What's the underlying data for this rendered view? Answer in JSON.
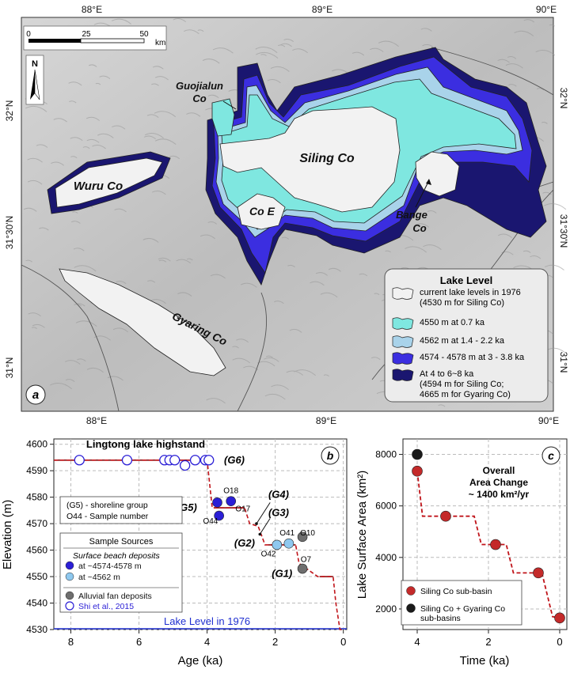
{
  "map": {
    "panel_label": "a",
    "lon_ticks": [
      "88°E",
      "89°E",
      "90°E"
    ],
    "lat_ticks_left": [
      "32°N",
      "31°30'N",
      "31°N"
    ],
    "lat_ticks_right": [
      "32°N",
      "31°30'N",
      "31°N"
    ],
    "scalebar": {
      "ticks": [
        "0",
        "25",
        "50"
      ],
      "unit": "km"
    },
    "north_label": "N",
    "lake_names": {
      "guojialun": [
        "Guojialun",
        "Co"
      ],
      "siling": "Siling Co",
      "wuru": "Wuru Co",
      "coe": "Co E",
      "bange": [
        "Bange",
        "Co"
      ],
      "gyaring": "Gyaring Co"
    },
    "legend": {
      "title": "Lake Level",
      "items": [
        {
          "text": [
            "current lake levels in 1976",
            "(4530 m for Siling Co)"
          ],
          "color": "#f2f2f2"
        },
        {
          "text": [
            "4550 m at 0.7 ka"
          ],
          "color": "#7fe7e0"
        },
        {
          "text": [
            "4562 m at 1.4 - 2.2 ka"
          ],
          "color": "#a9d3ea"
        },
        {
          "text": [
            "4574 - 4578 m at 3 - 3.8 ka"
          ],
          "color": "#3b2ee0"
        },
        {
          "text": [
            "At 4 to 6~8 ka",
            "(4594 m for Siling Co;",
            "4665 m for Gyaring Co)"
          ],
          "color": "#1a1670"
        }
      ]
    }
  },
  "chart_data": [
    {
      "type": "scatter",
      "panel_label": "b",
      "title": "Lingtong lake highstand",
      "xlabel": "Age (ka)",
      "ylabel": "Elevation (m)",
      "xlim": [
        8.5,
        -0.1
      ],
      "ylim": [
        4530,
        4602
      ],
      "x_ticks": [
        8,
        6,
        4,
        2,
        0
      ],
      "y_ticks": [
        4530,
        4540,
        4550,
        4560,
        4570,
        4580,
        4590,
        4600
      ],
      "grid": true,
      "reference_line": {
        "label": "Lake Level in 1976",
        "y": 4530,
        "color": "#1f2fd0"
      },
      "step_curve": {
        "color": "#c0141a",
        "solid_segments": [
          [
            [
              8.5,
              4594
            ],
            [
              4.0,
              4594
            ]
          ],
          [
            [
              3.8,
              4576
            ],
            [
              2.9,
              4576
            ]
          ],
          [
            [
              2.2,
              4562
            ],
            [
              1.4,
              4562
            ]
          ],
          [
            [
              0.7,
              4550
            ],
            [
              0.3,
              4550
            ]
          ]
        ],
        "dashed": [
          [
            8.5,
            4594
          ],
          [
            4.0,
            4594
          ],
          [
            3.85,
            4576
          ],
          [
            2.9,
            4576
          ],
          [
            2.75,
            4570
          ],
          [
            2.5,
            4569
          ],
          [
            2.3,
            4562
          ],
          [
            1.4,
            4562
          ],
          [
            1.3,
            4555
          ],
          [
            0.75,
            4550
          ],
          [
            0.3,
            4550
          ],
          [
            0.22,
            4540
          ],
          [
            0.1,
            4530
          ],
          [
            0.0,
            4530
          ]
        ]
      },
      "series": [
        {
          "name": "at ~4574-4578 m",
          "marker": "filled",
          "color": "#2b1fd6",
          "points": [
            [
              3.7,
              4578
            ],
            [
              3.3,
              4578.5
            ],
            [
              3.65,
              4573
            ]
          ]
        },
        {
          "name": "at ~4562 m",
          "marker": "filled",
          "color": "#8ec8ef",
          "points": [
            [
              1.95,
              4562
            ],
            [
              1.6,
              4562.5
            ]
          ]
        },
        {
          "name": "Alluvial fan deposits",
          "marker": "filled",
          "color": "#6e6e6e",
          "points": [
            [
              1.2,
              4565
            ],
            [
              1.2,
              4553
            ]
          ]
        },
        {
          "name": "Shi et al., 2015",
          "marker": "open",
          "color": "#2b1fd6",
          "points": [
            [
              7.75,
              4594
            ],
            [
              6.35,
              4594
            ],
            [
              5.25,
              4594
            ],
            [
              5.1,
              4594
            ],
            [
              4.95,
              4594
            ],
            [
              4.65,
              4592
            ],
            [
              4.35,
              4594
            ],
            [
              4.05,
              4594
            ],
            [
              3.95,
              4594
            ]
          ]
        }
      ],
      "annotations": [
        {
          "text": "(G6)",
          "x": 3.2,
          "y": 4594
        },
        {
          "text": "(G5)",
          "x": 4.6,
          "y": 4576
        },
        {
          "text": "(G4)",
          "x": 1.9,
          "y": 4581
        },
        {
          "text": "(G3)",
          "x": 1.9,
          "y": 4574
        },
        {
          "text": "(G2)",
          "x": 2.9,
          "y": 4562.5
        },
        {
          "text": "(G1)",
          "x": 1.8,
          "y": 4551
        }
      ],
      "sample_labels": [
        {
          "text": "O18",
          "x": 3.3,
          "y": 4582.5
        },
        {
          "text": "O17",
          "x": 2.95,
          "y": 4575.5
        },
        {
          "text": "O44",
          "x": 3.9,
          "y": 4571
        },
        {
          "text": "O41",
          "x": 1.65,
          "y": 4566.5
        },
        {
          "text": "O10",
          "x": 1.05,
          "y": 4566.5
        },
        {
          "text": "O42",
          "x": 2.2,
          "y": 4558.5
        },
        {
          "text": "O7",
          "x": 1.1,
          "y": 4556.5
        }
      ],
      "legend_box_top": {
        "line1": "(G5) - shoreline group",
        "line2": "O44 - Sample number"
      },
      "legend": {
        "title": "Sample Sources",
        "subtitle": "Surface beach deposits",
        "items": [
          "at ~4574-4578 m",
          "at ~4562 m",
          "Alluvial fan deposits",
          "Shi et al., 2015"
        ]
      }
    },
    {
      "type": "line",
      "panel_label": "c",
      "xlabel": "Time (ka)",
      "ylabel": "Lake Surface Area (km²)",
      "xlim": [
        4.4,
        -0.2
      ],
      "ylim": [
        1200,
        8600
      ],
      "x_ticks": [
        4,
        2,
        0
      ],
      "y_ticks": [
        2000,
        4000,
        6000,
        8000
      ],
      "grid": true,
      "annotation": [
        "Overall",
        "Area Change",
        "~ 1400 km²/yr"
      ],
      "step_curve": {
        "color": "#c0141a",
        "points": [
          [
            4.0,
            7350
          ],
          [
            3.85,
            5600
          ],
          [
            2.4,
            5600
          ],
          [
            2.2,
            4500
          ],
          [
            1.5,
            4500
          ],
          [
            1.3,
            3400
          ],
          [
            0.5,
            3400
          ],
          [
            0.2,
            1700
          ],
          [
            0.0,
            1650
          ]
        ]
      },
      "series": [
        {
          "name": "Siling Co sub-basin",
          "color": "#c42a2a",
          "points": [
            [
              4.0,
              7350
            ],
            [
              3.2,
              5600
            ],
            [
              1.8,
              4500
            ],
            [
              0.6,
              3400
            ],
            [
              0.0,
              1650
            ]
          ]
        },
        {
          "name": "Siling Co + Gyaring Co sub-basins",
          "color": "#1a1a1a",
          "points": [
            [
              4.0,
              8000
            ]
          ]
        }
      ],
      "legend": {
        "items": [
          [
            "Siling Co sub-basin"
          ],
          [
            "Siling Co + Gyaring Co",
            "sub-basins"
          ]
        ]
      }
    }
  ]
}
